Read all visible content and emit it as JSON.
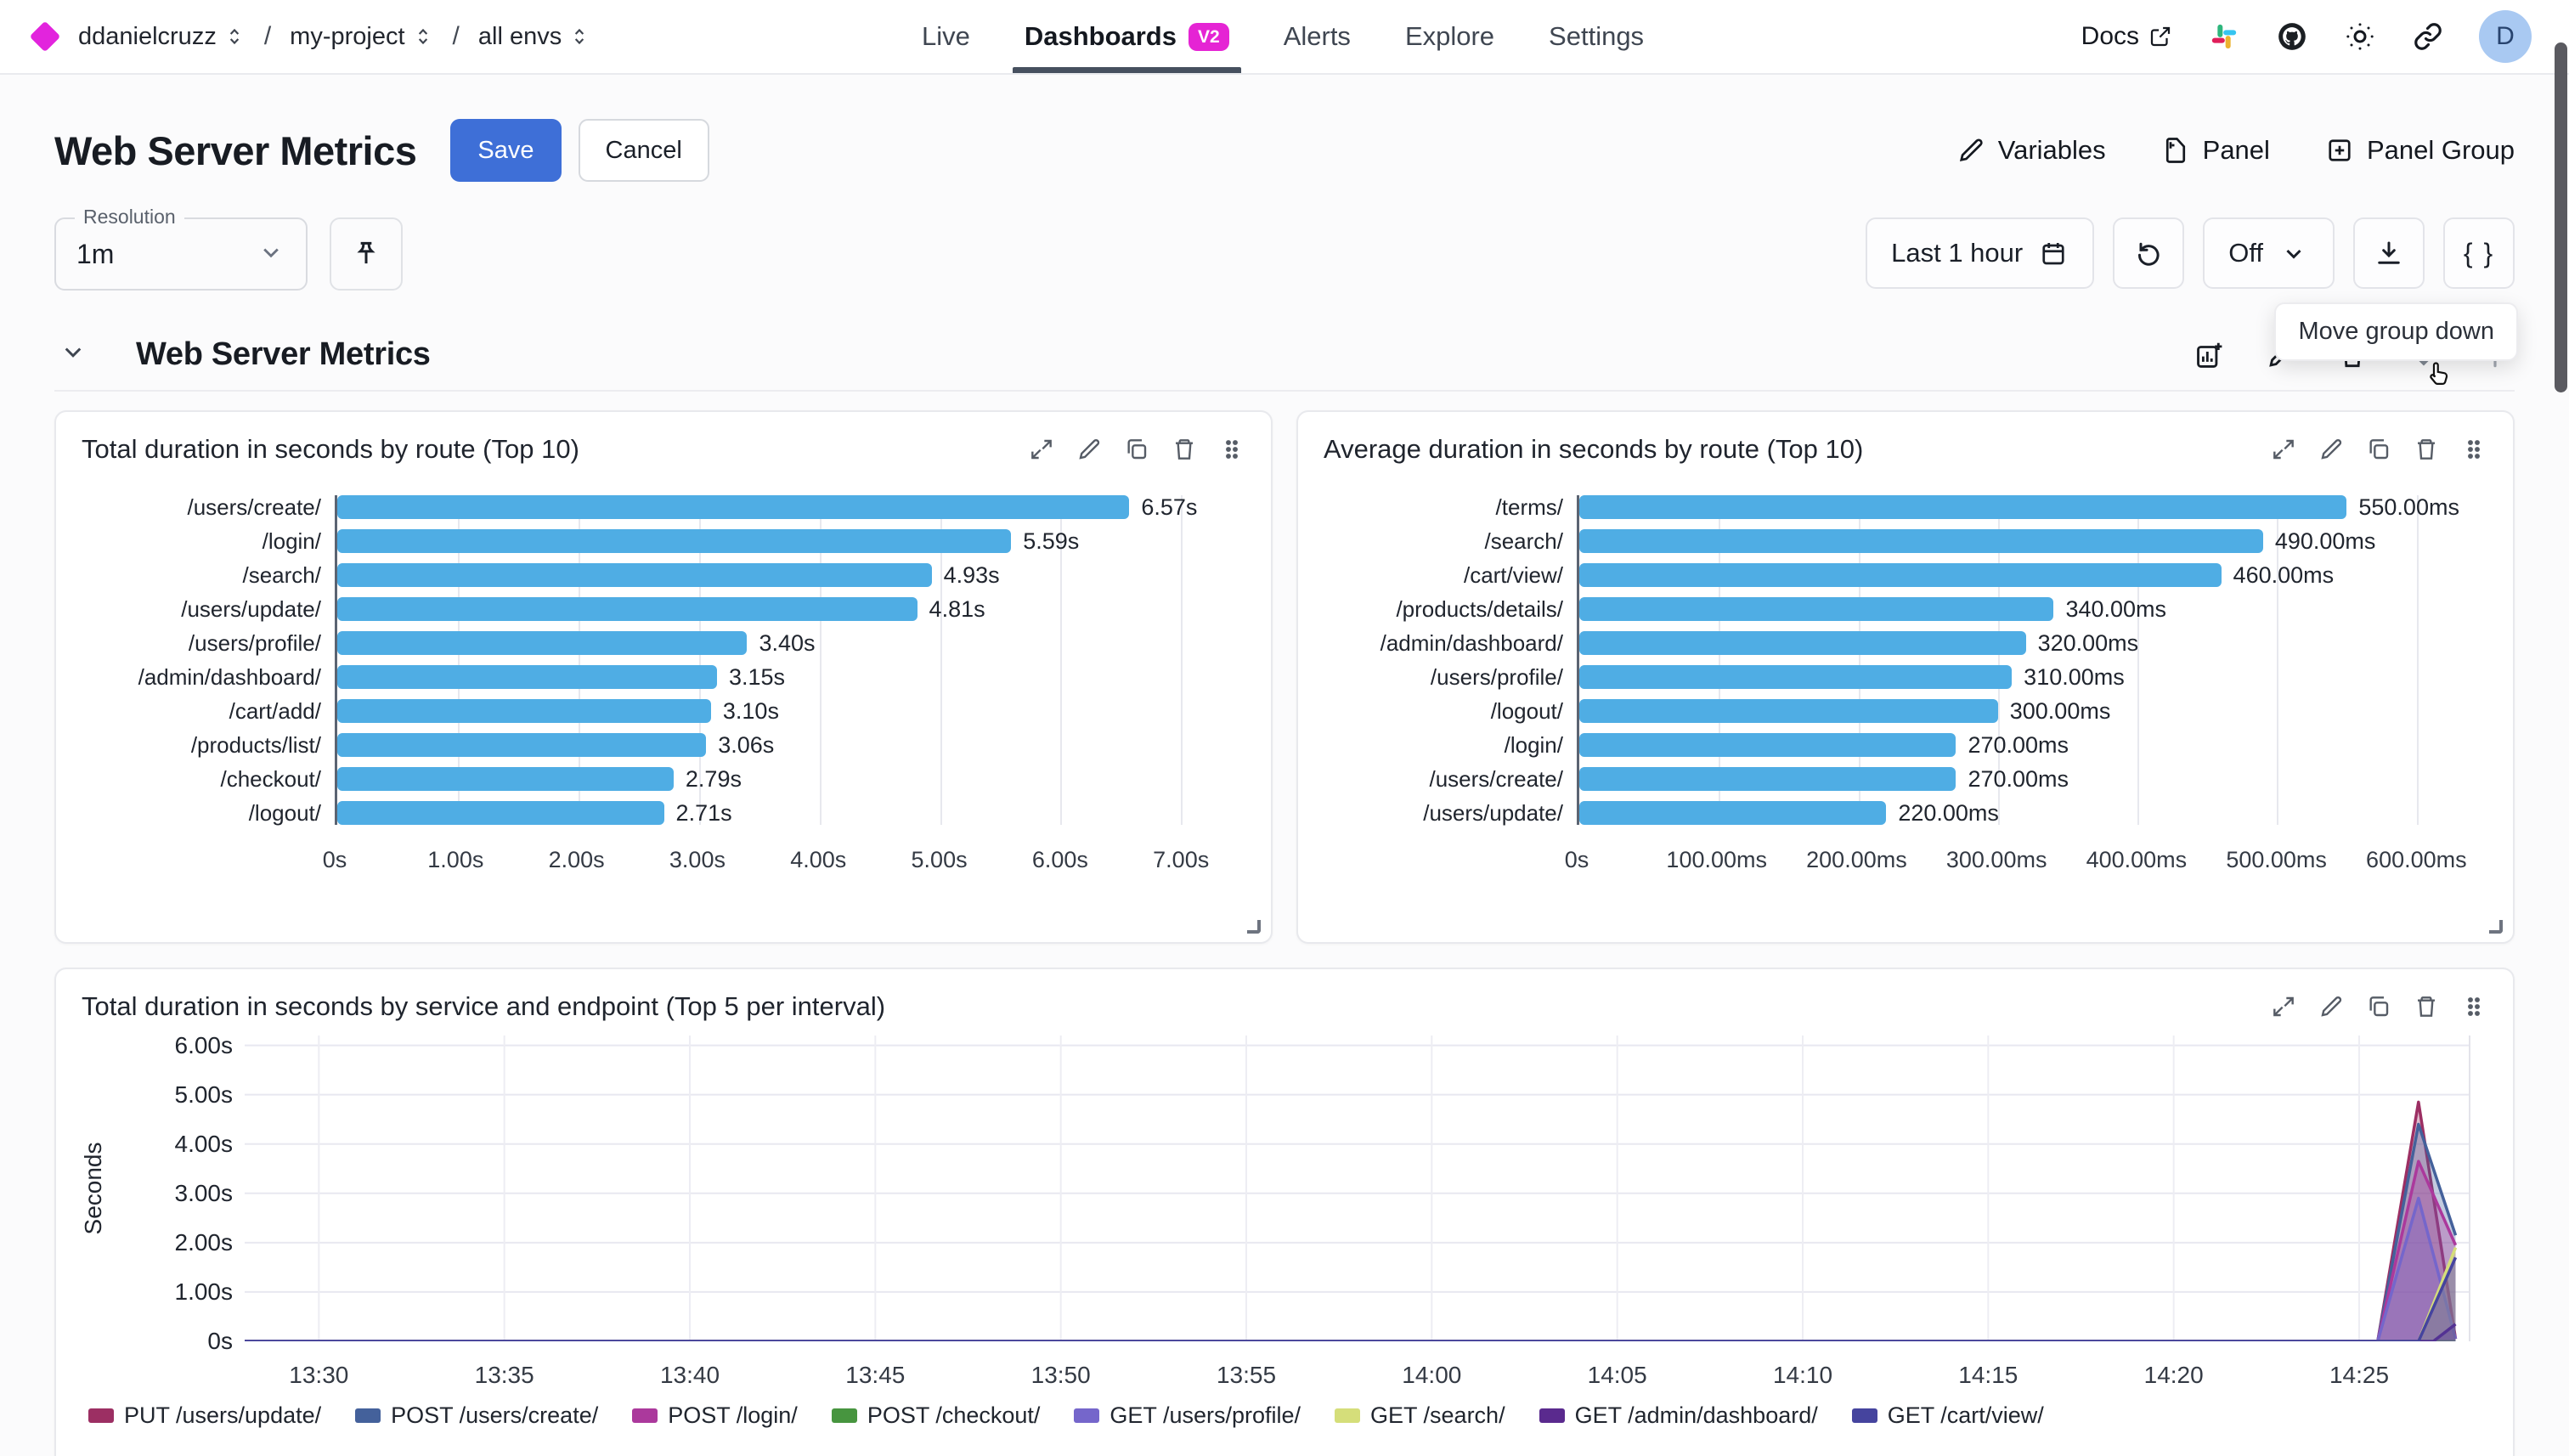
{
  "nav": {
    "breadcrumbs": [
      {
        "label": "ddanielcruzz"
      },
      {
        "label": "my-project"
      },
      {
        "label": "all envs"
      }
    ],
    "items": [
      {
        "label": "Live"
      },
      {
        "label": "Dashboards",
        "badge": "V2",
        "active": true
      },
      {
        "label": "Alerts"
      },
      {
        "label": "Explore"
      },
      {
        "label": "Settings"
      }
    ],
    "docs_label": "Docs",
    "avatar_initial": "D"
  },
  "header": {
    "title": "Web Server Metrics",
    "save_label": "Save",
    "cancel_label": "Cancel",
    "actions": [
      {
        "label": "Variables"
      },
      {
        "label": "Panel"
      },
      {
        "label": "Panel Group"
      }
    ]
  },
  "controls": {
    "resolution_label": "Resolution",
    "resolution_value": "1m",
    "time_range": "Last 1 hour",
    "auto_refresh": "Off",
    "braces_label": "{ }",
    "tooltip": "Move group down"
  },
  "group": {
    "title": "Web Server Metrics"
  },
  "colors": {
    "accent_blue": "#3e6fd7",
    "badge_magenta": "#e524d4",
    "bar_blue": "#4fade4"
  },
  "chart_data": [
    {
      "type": "bar",
      "orientation": "horizontal",
      "title": "Total duration in seconds by route (Top 10)",
      "categories": [
        "/users/create/",
        "/login/",
        "/search/",
        "/users/update/",
        "/users/profile/",
        "/admin/dashboard/",
        "/cart/add/",
        "/products/list/",
        "/checkout/",
        "/logout/"
      ],
      "values": [
        6.57,
        5.59,
        4.93,
        4.81,
        3.4,
        3.15,
        3.1,
        3.06,
        2.79,
        2.71
      ],
      "value_labels": [
        "6.57s",
        "5.59s",
        "4.93s",
        "4.81s",
        "3.40s",
        "3.15s",
        "3.10s",
        "3.06s",
        "2.79s",
        "2.71s"
      ],
      "x_tick_labels": [
        "0s",
        "1.00s",
        "2.00s",
        "3.00s",
        "4.00s",
        "5.00s",
        "6.00s",
        "7.00s"
      ],
      "x_tick_values": [
        0,
        1,
        2,
        3,
        4,
        5,
        6,
        7
      ],
      "axis_max": 7.35,
      "bar_color": "#4fade4",
      "grid": true
    },
    {
      "type": "bar",
      "orientation": "horizontal",
      "title": "Average duration in seconds by route (Top 10)",
      "categories": [
        "/terms/",
        "/search/",
        "/cart/view/",
        "/products/details/",
        "/admin/dashboard/",
        "/users/profile/",
        "/logout/",
        "/login/",
        "/users/create/",
        "/users/update/"
      ],
      "values": [
        550,
        490,
        460,
        340,
        320,
        310,
        300,
        270,
        270,
        220
      ],
      "value_labels": [
        "550.00ms",
        "490.00ms",
        "460.00ms",
        "340.00ms",
        "320.00ms",
        "310.00ms",
        "300.00ms",
        "270.00ms",
        "270.00ms",
        "220.00ms"
      ],
      "x_tick_labels": [
        "0s",
        "100.00ms",
        "200.00ms",
        "300.00ms",
        "400.00ms",
        "500.00ms",
        "600.00ms"
      ],
      "x_tick_values": [
        0,
        100,
        200,
        300,
        400,
        500,
        600
      ],
      "axis_max": 635,
      "bar_color": "#4fade4",
      "grid": true
    },
    {
      "type": "area",
      "title": "Total duration in seconds by service and endpoint (Top 5 per interval)",
      "ylabel": "Seconds",
      "y_ticks": [
        {
          "label": "0s",
          "v": 0
        },
        {
          "label": "1.00s",
          "v": 1
        },
        {
          "label": "2.00s",
          "v": 2
        },
        {
          "label": "3.00s",
          "v": 3
        },
        {
          "label": "4.00s",
          "v": 4
        },
        {
          "label": "5.00s",
          "v": 5
        },
        {
          "label": "6.00s",
          "v": 6
        }
      ],
      "x_ticks": [
        {
          "label": "13:30",
          "min": 2
        },
        {
          "label": "13:35",
          "min": 7
        },
        {
          "label": "13:40",
          "min": 12
        },
        {
          "label": "13:45",
          "min": 17
        },
        {
          "label": "13:50",
          "min": 22
        },
        {
          "label": "13:55",
          "min": 27
        },
        {
          "label": "14:00",
          "min": 32
        },
        {
          "label": "14:05",
          "min": 37
        },
        {
          "label": "14:10",
          "min": 42
        },
        {
          "label": "14:15",
          "min": 47
        },
        {
          "label": "14:20",
          "min": 52
        },
        {
          "label": "14:25",
          "min": 57
        }
      ],
      "x_range": [
        0,
        60
      ],
      "y_range": [
        0,
        6.2
      ],
      "grid": true,
      "legend_position": "bottom",
      "series": [
        {
          "name": "PUT /users/update/",
          "color": "#9c2f63",
          "points": [
            [
              0,
              0
            ],
            [
              57.5,
              0
            ],
            [
              58.6,
              4.85
            ],
            [
              59.6,
              0.05
            ]
          ]
        },
        {
          "name": "POST /users/create/",
          "color": "#44619b",
          "points": [
            [
              0,
              0
            ],
            [
              57.5,
              0
            ],
            [
              58.6,
              4.4
            ],
            [
              59.6,
              2.15
            ]
          ]
        },
        {
          "name": "POST /login/",
          "color": "#ab399c",
          "points": [
            [
              0,
              0
            ],
            [
              57.5,
              0
            ],
            [
              58.6,
              3.65
            ],
            [
              59.6,
              1.95
            ]
          ]
        },
        {
          "name": "POST /checkout/",
          "color": "#47953f",
          "points": [
            [
              0,
              0
            ],
            [
              59.6,
              0
            ]
          ]
        },
        {
          "name": "GET /users/profile/",
          "color": "#7566cb",
          "points": [
            [
              0,
              0
            ],
            [
              57.5,
              0
            ],
            [
              58.6,
              2.9
            ],
            [
              59.6,
              0.05
            ]
          ]
        },
        {
          "name": "GET /search/",
          "color": "#d5de7a",
          "points": [
            [
              0,
              0
            ],
            [
              58.6,
              0
            ],
            [
              59.6,
              1.9
            ]
          ]
        },
        {
          "name": "GET /admin/dashboard/",
          "color": "#5a2a8e",
          "points": [
            [
              0,
              0
            ],
            [
              59.0,
              0
            ],
            [
              59.6,
              0.35
            ]
          ]
        },
        {
          "name": "GET /cart/view/",
          "color": "#45449e",
          "points": [
            [
              0,
              0
            ],
            [
              58.6,
              0
            ],
            [
              59.6,
              1.7
            ]
          ]
        }
      ]
    }
  ]
}
